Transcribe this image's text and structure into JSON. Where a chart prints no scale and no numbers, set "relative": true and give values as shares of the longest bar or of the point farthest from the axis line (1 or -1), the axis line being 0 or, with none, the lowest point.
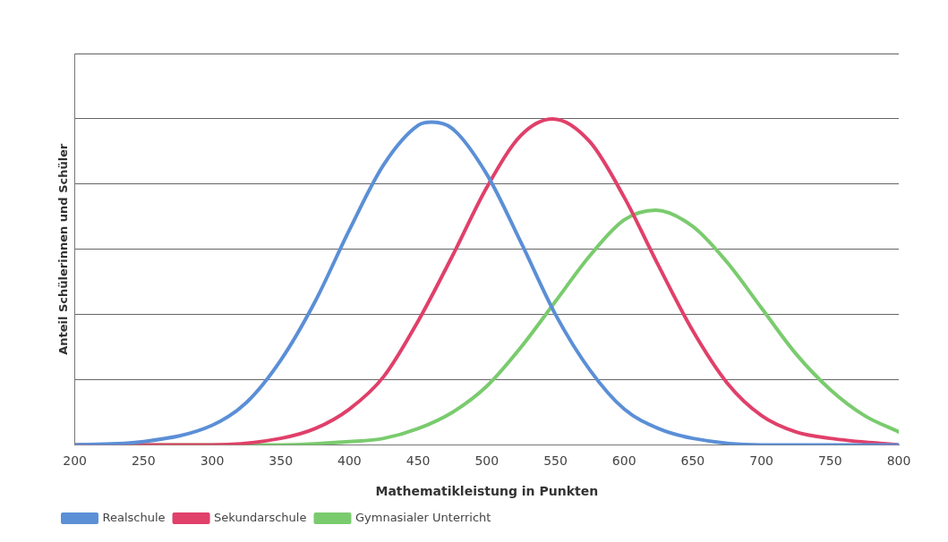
{
  "chart_data": {
    "type": "line",
    "xlabel": "Mathematikleistung in Punkten",
    "ylabel": "Anteil Schülerinnen und Schüler",
    "relative": true,
    "xlim": [
      200,
      800
    ],
    "xticks": [
      200,
      250,
      300,
      350,
      400,
      450,
      500,
      550,
      600,
      650,
      700,
      750,
      800
    ],
    "grid": "y",
    "legend": "bottom left",
    "marker": "none",
    "line_style": "solid",
    "series": [
      {
        "name": "Realschule",
        "color": "#5b8fd6",
        "x": [
          200,
          250,
          300,
          325,
          350,
          375,
          400,
          425,
          450,
          460,
          475,
          500,
          525,
          550,
          575,
          600,
          625,
          650,
          700,
          800
        ],
        "values": [
          0,
          0.01,
          0.06,
          0.13,
          0.26,
          0.44,
          0.66,
          0.86,
          0.98,
          0.99,
          0.97,
          0.83,
          0.62,
          0.4,
          0.23,
          0.11,
          0.05,
          0.02,
          0,
          0
        ]
      },
      {
        "name": "Sekundarschule",
        "color": "#e0406a",
        "x": [
          200,
          300,
          350,
          375,
          400,
          425,
          450,
          475,
          500,
          525,
          548,
          575,
          600,
          625,
          650,
          675,
          700,
          725,
          750,
          800
        ],
        "values": [
          0,
          0,
          0.02,
          0.05,
          0.11,
          0.21,
          0.38,
          0.58,
          0.79,
          0.95,
          1,
          0.93,
          0.76,
          0.55,
          0.35,
          0.19,
          0.09,
          0.04,
          0.02,
          0
        ]
      },
      {
        "name": "Gymnasialer Unterricht",
        "color": "#7acb6e",
        "x": [
          200,
          350,
          400,
          425,
          450,
          475,
          500,
          525,
          550,
          575,
          600,
          623,
          650,
          675,
          700,
          725,
          750,
          775,
          800
        ],
        "values": [
          0,
          0,
          0.01,
          0.02,
          0.05,
          0.1,
          0.18,
          0.3,
          0.44,
          0.58,
          0.69,
          0.72,
          0.67,
          0.56,
          0.42,
          0.28,
          0.17,
          0.09,
          0.04
        ]
      }
    ]
  }
}
